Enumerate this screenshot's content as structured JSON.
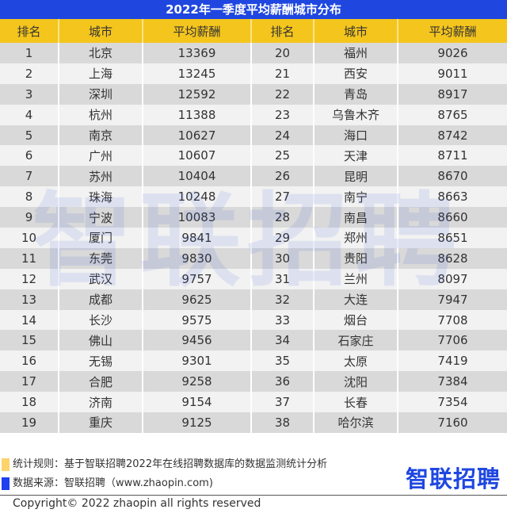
{
  "title": "2022年一季度平均薪酬城市分布",
  "headers": [
    "排名",
    "城市",
    "平均薪酬",
    "排名",
    "城市",
    "平均薪酬"
  ],
  "rows": [
    {
      "rank_a": "1",
      "city_a": "北京",
      "salary_a": "13369",
      "rank_b": "20",
      "city_b": "福州",
      "salary_b": "9026"
    },
    {
      "rank_a": "2",
      "city_a": "上海",
      "salary_a": "13245",
      "rank_b": "21",
      "city_b": "西安",
      "salary_b": "9011"
    },
    {
      "rank_a": "3",
      "city_a": "深圳",
      "salary_a": "12592",
      "rank_b": "22",
      "city_b": "青岛",
      "salary_b": "8917"
    },
    {
      "rank_a": "4",
      "city_a": "杭州",
      "salary_a": "11388",
      "rank_b": "23",
      "city_b": "乌鲁木齐",
      "salary_b": "8765"
    },
    {
      "rank_a": "5",
      "city_a": "南京",
      "salary_a": "10627",
      "rank_b": "24",
      "city_b": "海口",
      "salary_b": "8742"
    },
    {
      "rank_a": "6",
      "city_a": "广州",
      "salary_a": "10607",
      "rank_b": "25",
      "city_b": "天津",
      "salary_b": "8711"
    },
    {
      "rank_a": "7",
      "city_a": "苏州",
      "salary_a": "10404",
      "rank_b": "26",
      "city_b": "昆明",
      "salary_b": "8670"
    },
    {
      "rank_a": "8",
      "city_a": "珠海",
      "salary_a": "10248",
      "rank_b": "27",
      "city_b": "南宁",
      "salary_b": "8663"
    },
    {
      "rank_a": "9",
      "city_a": "宁波",
      "salary_a": "10083",
      "rank_b": "28",
      "city_b": "南昌",
      "salary_b": "8660"
    },
    {
      "rank_a": "10",
      "city_a": "厦门",
      "salary_a": "9841",
      "rank_b": "29",
      "city_b": "郑州",
      "salary_b": "8651"
    },
    {
      "rank_a": "11",
      "city_a": "东莞",
      "salary_a": "9830",
      "rank_b": "30",
      "city_b": "贵阳",
      "salary_b": "8628"
    },
    {
      "rank_a": "12",
      "city_a": "武汉",
      "salary_a": "9757",
      "rank_b": "31",
      "city_b": "兰州",
      "salary_b": "8097"
    },
    {
      "rank_a": "13",
      "city_a": "成都",
      "salary_a": "9625",
      "rank_b": "32",
      "city_b": "大连",
      "salary_b": "7947"
    },
    {
      "rank_a": "14",
      "city_a": "长沙",
      "salary_a": "9575",
      "rank_b": "33",
      "city_b": "烟台",
      "salary_b": "7708"
    },
    {
      "rank_a": "15",
      "city_a": "佛山",
      "salary_a": "9456",
      "rank_b": "34",
      "city_b": "石家庄",
      "salary_b": "7706"
    },
    {
      "rank_a": "16",
      "city_a": "无锡",
      "salary_a": "9301",
      "rank_b": "35",
      "city_b": "太原",
      "salary_b": "7419"
    },
    {
      "rank_a": "17",
      "city_a": "合肥",
      "salary_a": "9258",
      "rank_b": "36",
      "city_b": "沈阳",
      "salary_b": "7384"
    },
    {
      "rank_a": "18",
      "city_a": "济南",
      "salary_a": "9154",
      "rank_b": "37",
      "city_b": "长春",
      "salary_b": "7354"
    },
    {
      "rank_a": "19",
      "city_a": "重庆",
      "salary_a": "9125",
      "rank_b": "38",
      "city_b": "哈尔滨",
      "salary_b": "7160"
    }
  ],
  "watermark": "智联招聘",
  "notes": {
    "rule": "统计规则：基于智联招聘2022年在线招聘数据库的数据监测统计分析",
    "source": "数据来源：智联招聘（www.zhaopin.com)"
  },
  "logo": {
    "first": "智",
    "rest": "联招聘"
  },
  "copyright": "Copyright© 2022 zhaopin all rights reserved",
  "colors": {
    "title_bg": "#1f47e0",
    "header_bg": "#f4c51c",
    "row_odd": "#d9d9d9",
    "row_even": "#f2f2f2",
    "rule_swatch": "#fdd36b",
    "source_swatch": "#1f3ff0"
  }
}
